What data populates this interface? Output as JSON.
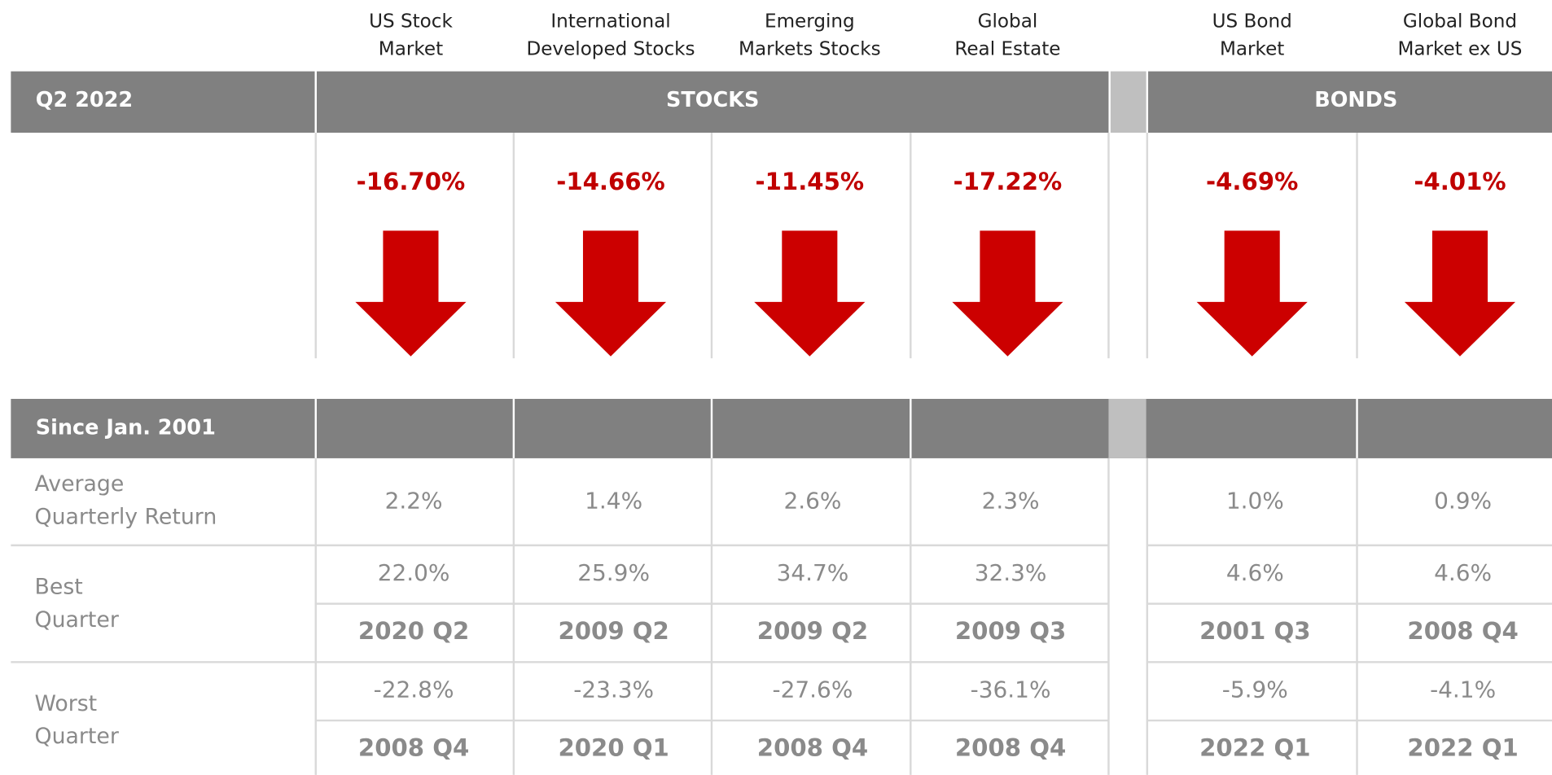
{
  "header": {
    "period": "Q2 2022",
    "groups": [
      "STOCKS",
      "BONDS"
    ],
    "since": "Since Jan. 2001"
  },
  "row_labels": {
    "average": [
      "Average",
      "Quarterly Return"
    ],
    "best": [
      "Best",
      "Quarter"
    ],
    "worst": [
      "Worst",
      "Quarter"
    ]
  },
  "columns": [
    {
      "name": [
        "US Stock",
        "Market"
      ],
      "return": "-16.70%",
      "average": "2.2%",
      "best": "22.0%",
      "best_date": "2020 Q2",
      "worst": "-22.8%",
      "worst_date": "2008 Q4"
    },
    {
      "name": [
        "International",
        "Developed Stocks"
      ],
      "return": "-14.66%",
      "average": "1.4%",
      "best": "25.9%",
      "best_date": "2009 Q2",
      "worst": "-23.3%",
      "worst_date": "2020 Q1"
    },
    {
      "name": [
        "Emerging",
        "Markets  Stocks"
      ],
      "return": "-11.45%",
      "average": "2.6%",
      "best": "34.7%",
      "best_date": "2009 Q2",
      "worst": "-27.6%",
      "worst_date": "2008 Q4"
    },
    {
      "name": [
        "Global",
        "Real Estate"
      ],
      "return": "-17.22%",
      "average": "2.3%",
      "best": "32.3%",
      "best_date": "2009 Q3",
      "worst": "-36.1%",
      "worst_date": "2008 Q4"
    },
    {
      "name": [
        "US Bond",
        "Market"
      ],
      "return": "-4.69%",
      "average": "1.0%",
      "best": "4.6%",
      "best_date": "2001 Q3",
      "worst": "-5.9%",
      "worst_date": "2022 Q1"
    },
    {
      "name": [
        "Global Bond",
        "Market ex US"
      ],
      "return": "-4.01%",
      "average": "0.9%",
      "best": "4.6%",
      "best_date": "2008 Q4",
      "worst": "-4.1%",
      "worst_date": "2022 Q1"
    }
  ]
}
